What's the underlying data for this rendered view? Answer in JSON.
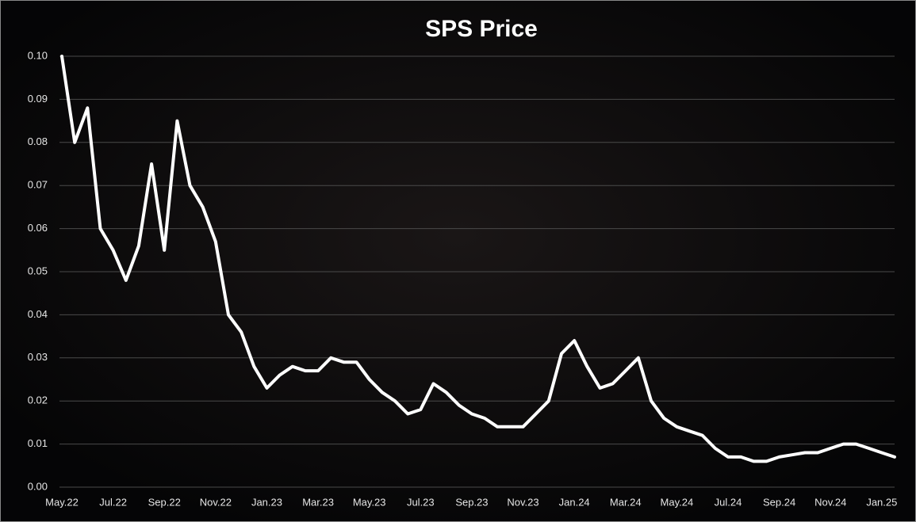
{
  "chart_data": {
    "type": "line",
    "title": "SPS Price",
    "categories": [
      "May.22",
      null,
      null,
      null,
      "Jul.22",
      null,
      null,
      null,
      "Sep.22",
      null,
      null,
      null,
      "Nov.22",
      null,
      null,
      null,
      "Jan.23",
      null,
      null,
      null,
      "Mar.23",
      null,
      null,
      null,
      "May.23",
      null,
      null,
      null,
      "Jul.23",
      null,
      null,
      null,
      "Sep.23",
      null,
      null,
      null,
      "Nov.23",
      null,
      null,
      null,
      "Jan.24",
      null,
      null,
      null,
      "Mar.24",
      null,
      null,
      null,
      "May.24",
      null,
      null,
      null,
      "Jul.24",
      null,
      null,
      null,
      "Sep.24",
      null,
      null,
      null,
      "Nov.24",
      null,
      null,
      null,
      "Jan.25",
      null
    ],
    "values": [
      0.1,
      0.08,
      0.088,
      0.06,
      0.055,
      0.048,
      0.056,
      0.075,
      0.055,
      0.085,
      0.07,
      0.065,
      0.057,
      0.04,
      0.036,
      0.028,
      0.023,
      0.026,
      0.028,
      0.027,
      0.027,
      0.03,
      0.029,
      0.029,
      0.025,
      0.022,
      0.02,
      0.017,
      0.018,
      0.024,
      0.022,
      0.019,
      0.017,
      0.016,
      0.014,
      0.014,
      0.014,
      0.017,
      0.02,
      0.031,
      0.034,
      0.028,
      0.023,
      0.024,
      0.027,
      0.03,
      0.02,
      0.016,
      0.014,
      0.013,
      0.012,
      0.009,
      0.007,
      0.007,
      0.006,
      0.006,
      0.007,
      0.0075,
      0.008,
      0.008,
      0.009,
      0.01,
      0.01,
      0.009,
      0.008,
      0.007
    ],
    "color": "#ffffff",
    "ylim": [
      0,
      0.1
    ],
    "yticks": [
      {
        "value": 0,
        "label": "0.00"
      },
      {
        "value": 0.01,
        "label": "0.01"
      },
      {
        "value": 0.02,
        "label": "0.02"
      },
      {
        "value": 0.03,
        "label": "0.03"
      },
      {
        "value": 0.04,
        "label": "0.04"
      },
      {
        "value": 0.05,
        "label": "0.05"
      },
      {
        "value": 0.06,
        "label": "0.06"
      },
      {
        "value": 0.07,
        "label": "0.07"
      },
      {
        "value": 0.08,
        "label": "0.08"
      },
      {
        "value": 0.09,
        "label": "0.09"
      },
      {
        "value": 0.1,
        "label": "0.10"
      }
    ],
    "grid": true
  }
}
